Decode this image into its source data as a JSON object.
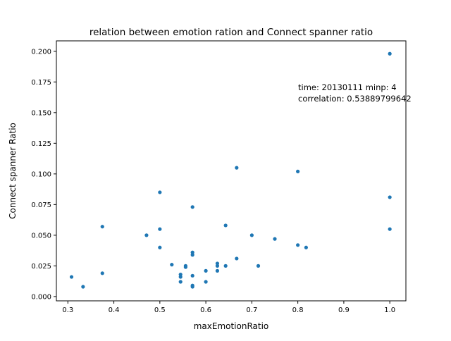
{
  "chart_data": {
    "type": "scatter",
    "title": "relation between emotion ration and Connect spanner ratio",
    "xlabel": "maxEmotionRatio",
    "ylabel": "Connect spanner Ratio",
    "xlim": [
      0.275,
      1.035
    ],
    "ylim": [
      -0.0035,
      0.2085
    ],
    "xticks": [
      0.3,
      0.4,
      0.5,
      0.6,
      0.7,
      0.8,
      0.9,
      1.0
    ],
    "xtick_labels": [
      "0.3",
      "0.4",
      "0.5",
      "0.6",
      "0.7",
      "0.8",
      "0.9",
      "1.0"
    ],
    "yticks": [
      0.0,
      0.025,
      0.05,
      0.075,
      0.1,
      0.125,
      0.15,
      0.175,
      0.2
    ],
    "ytick_labels": [
      "0.000",
      "0.025",
      "0.050",
      "0.075",
      "0.100",
      "0.125",
      "0.150",
      "0.175",
      "0.200"
    ],
    "grid": false,
    "marker_color": "#1f77b4",
    "annotation": {
      "x": 0.8,
      "y": 0.17,
      "lines": [
        "time: 20130111 minp: 4",
        "correlation: 0.53889799642"
      ]
    },
    "points": [
      {
        "x": 0.308,
        "y": 0.016
      },
      {
        "x": 0.333,
        "y": 0.008
      },
      {
        "x": 0.375,
        "y": 0.057
      },
      {
        "x": 0.375,
        "y": 0.019
      },
      {
        "x": 0.471,
        "y": 0.05
      },
      {
        "x": 0.5,
        "y": 0.085
      },
      {
        "x": 0.5,
        "y": 0.055
      },
      {
        "x": 0.5,
        "y": 0.04
      },
      {
        "x": 0.526,
        "y": 0.026
      },
      {
        "x": 0.545,
        "y": 0.018
      },
      {
        "x": 0.545,
        "y": 0.016
      },
      {
        "x": 0.545,
        "y": 0.012
      },
      {
        "x": 0.556,
        "y": 0.025
      },
      {
        "x": 0.556,
        "y": 0.024
      },
      {
        "x": 0.571,
        "y": 0.073
      },
      {
        "x": 0.571,
        "y": 0.036
      },
      {
        "x": 0.571,
        "y": 0.034
      },
      {
        "x": 0.571,
        "y": 0.017
      },
      {
        "x": 0.571,
        "y": 0.009
      },
      {
        "x": 0.571,
        "y": 0.008
      },
      {
        "x": 0.6,
        "y": 0.021
      },
      {
        "x": 0.6,
        "y": 0.012
      },
      {
        "x": 0.625,
        "y": 0.027
      },
      {
        "x": 0.625,
        "y": 0.025
      },
      {
        "x": 0.625,
        "y": 0.021
      },
      {
        "x": 0.643,
        "y": 0.058
      },
      {
        "x": 0.643,
        "y": 0.025
      },
      {
        "x": 0.667,
        "y": 0.105
      },
      {
        "x": 0.667,
        "y": 0.031
      },
      {
        "x": 0.7,
        "y": 0.05
      },
      {
        "x": 0.714,
        "y": 0.025
      },
      {
        "x": 0.75,
        "y": 0.047
      },
      {
        "x": 0.8,
        "y": 0.102
      },
      {
        "x": 0.8,
        "y": 0.042
      },
      {
        "x": 0.818,
        "y": 0.04
      },
      {
        "x": 1.0,
        "y": 0.198
      },
      {
        "x": 1.0,
        "y": 0.081
      },
      {
        "x": 1.0,
        "y": 0.055
      }
    ]
  }
}
